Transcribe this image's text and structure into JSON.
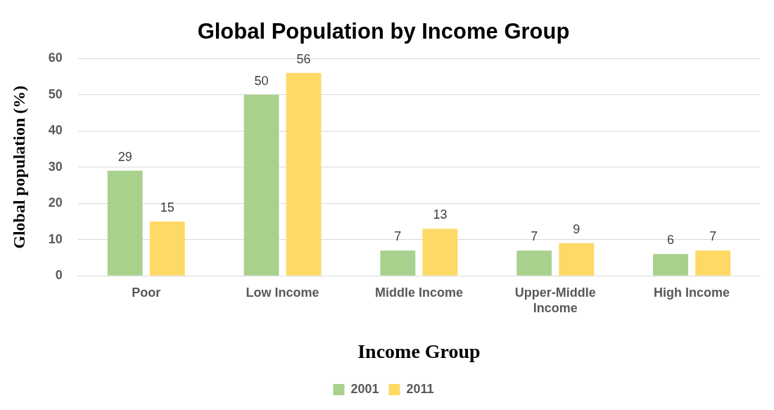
{
  "chart_data": {
    "type": "bar",
    "title": "Global Population by Income Group",
    "xlabel": "Income Group",
    "ylabel": "Global population (%)",
    "categories": [
      "Poor",
      "Low Income",
      "Middle Income",
      "Upper-Middle Income",
      "High Income"
    ],
    "series": [
      {
        "name": "2001",
        "color": "#a9d18e",
        "values": [
          29,
          50,
          7,
          7,
          6
        ]
      },
      {
        "name": "2011",
        "color": "#ffd966",
        "values": [
          15,
          56,
          13,
          9,
          7
        ]
      }
    ],
    "ylim": [
      0,
      60
    ],
    "yticks": [
      0,
      10,
      20,
      30,
      40,
      50,
      60
    ],
    "grid": "y",
    "legend": "bottom",
    "data_labels": true
  }
}
